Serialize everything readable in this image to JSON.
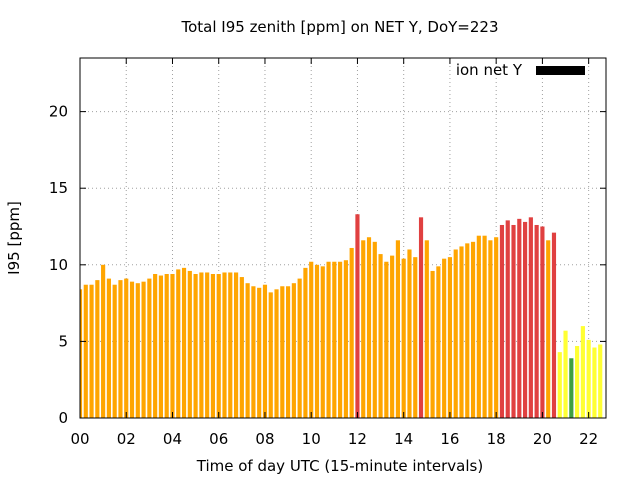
{
  "chart_data": {
    "type": "bar",
    "title": "Total I95 zenith [ppm] on NET Y, DoY=223",
    "xlabel": "Time of day UTC (15-minute intervals)",
    "ylabel": "I95 [ppm]",
    "xlim": [
      0,
      22.75
    ],
    "ylim": [
      0,
      23.5
    ],
    "x_ticks": [
      0,
      2,
      4,
      6,
      8,
      10,
      12,
      14,
      16,
      18,
      20,
      22
    ],
    "x_tick_labels": [
      "00",
      "02",
      "04",
      "06",
      "08",
      "10",
      "12",
      "14",
      "16",
      "18",
      "20",
      "22"
    ],
    "y_ticks": [
      0,
      5,
      10,
      15,
      20
    ],
    "y_tick_labels": [
      "0",
      "5",
      "10",
      "15",
      "20"
    ],
    "grid": true,
    "legend": {
      "position": "top-right",
      "entries": [
        {
          "label": "ion net Y",
          "color": "#000000"
        }
      ]
    },
    "colors": {
      "orange": "#ffa500",
      "red": "#e04040",
      "yellow": "#ffff33",
      "green": "#40a040"
    },
    "interval_hours": 0.25,
    "values": [
      8.4,
      8.7,
      8.7,
      9.0,
      10.0,
      9.1,
      8.7,
      9.0,
      9.1,
      8.9,
      8.8,
      8.9,
      9.1,
      9.4,
      9.3,
      9.4,
      9.4,
      9.7,
      9.8,
      9.6,
      9.4,
      9.5,
      9.5,
      9.4,
      9.4,
      9.5,
      9.5,
      9.5,
      9.2,
      8.8,
      8.6,
      8.5,
      8.7,
      8.2,
      8.4,
      8.6,
      8.6,
      8.8,
      9.1,
      9.8,
      10.2,
      10.0,
      9.9,
      10.2,
      10.2,
      10.2,
      10.3,
      11.1,
      13.3,
      11.6,
      11.8,
      11.5,
      10.7,
      10.2,
      10.6,
      11.6,
      10.4,
      11.0,
      10.5,
      13.1,
      11.6,
      9.6,
      9.9,
      10.4,
      10.5,
      11.0,
      11.2,
      11.4,
      11.5,
      11.9,
      11.9,
      11.6,
      11.8,
      12.6,
      12.9,
      12.6,
      13.0,
      12.8,
      13.1,
      12.6,
      12.5,
      11.6,
      12.1,
      4.3,
      5.7,
      3.9,
      4.7,
      6.0,
      5.1,
      4.6,
      4.8
    ],
    "bar_colors": [
      "orange",
      "orange",
      "orange",
      "orange",
      "orange",
      "orange",
      "orange",
      "orange",
      "orange",
      "orange",
      "orange",
      "orange",
      "orange",
      "orange",
      "orange",
      "orange",
      "orange",
      "orange",
      "orange",
      "orange",
      "orange",
      "orange",
      "orange",
      "orange",
      "orange",
      "orange",
      "orange",
      "orange",
      "orange",
      "orange",
      "orange",
      "orange",
      "orange",
      "orange",
      "orange",
      "orange",
      "orange",
      "orange",
      "orange",
      "orange",
      "orange",
      "orange",
      "orange",
      "orange",
      "orange",
      "orange",
      "orange",
      "orange",
      "red",
      "orange",
      "orange",
      "orange",
      "orange",
      "orange",
      "orange",
      "orange",
      "orange",
      "orange",
      "orange",
      "red",
      "orange",
      "orange",
      "orange",
      "orange",
      "orange",
      "orange",
      "orange",
      "orange",
      "orange",
      "orange",
      "orange",
      "orange",
      "orange",
      "red",
      "red",
      "red",
      "red",
      "red",
      "red",
      "red",
      "red",
      "orange",
      "red",
      "yellow",
      "yellow",
      "green",
      "yellow",
      "yellow",
      "yellow",
      "yellow",
      "yellow"
    ]
  }
}
